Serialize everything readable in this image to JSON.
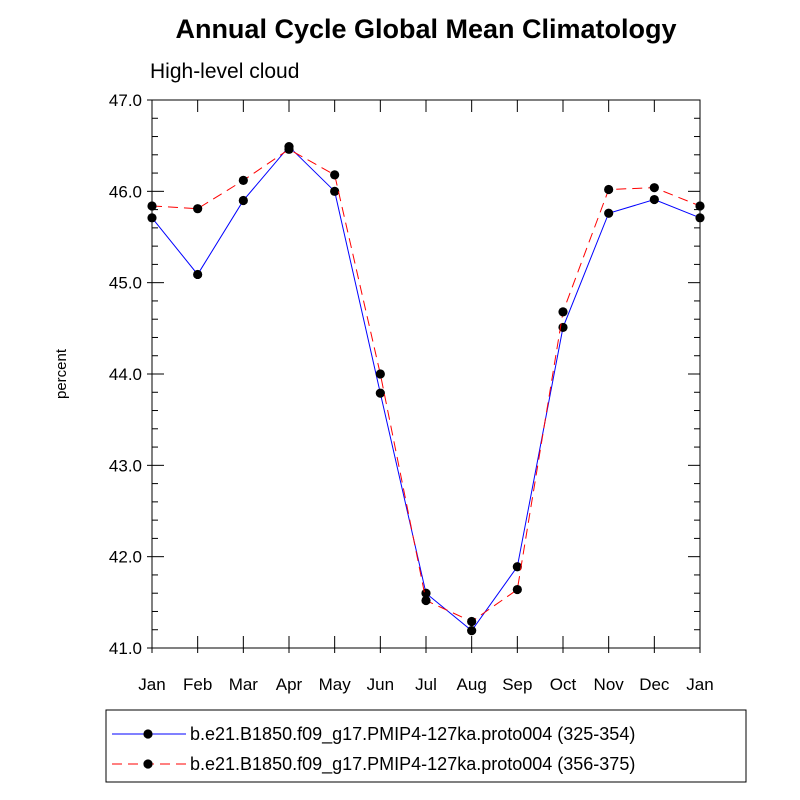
{
  "chart_data": {
    "type": "line",
    "title": "Annual Cycle Global Mean Climatology",
    "subtitle": "High-level cloud",
    "xlabel": "",
    "ylabel": "percent",
    "ylim": [
      41.0,
      47.0
    ],
    "y_ticks": [
      "41.0",
      "42.0",
      "43.0",
      "44.0",
      "45.0",
      "46.0",
      "47.0"
    ],
    "categories": [
      "Jan",
      "Feb",
      "Mar",
      "Apr",
      "May",
      "Jun",
      "Jul",
      "Aug",
      "Sep",
      "Oct",
      "Nov",
      "Dec",
      "Jan"
    ],
    "series": [
      {
        "name": "b.e21.B1850.f09_g17.PMIP4-127ka.proto004 (325-354)",
        "color": "#0000ff",
        "dash": "solid",
        "values": [
          45.71,
          45.09,
          45.9,
          46.49,
          46.0,
          43.79,
          41.6,
          41.19,
          41.89,
          44.51,
          45.76,
          45.91,
          45.71
        ]
      },
      {
        "name": "b.e21.B1850.f09_g17.PMIP4-127ka.proto004 (356-375)",
        "color": "#ff0000",
        "dash": "dashed",
        "values": [
          45.84,
          45.81,
          46.12,
          46.46,
          46.18,
          44.0,
          41.52,
          41.29,
          41.64,
          44.68,
          46.02,
          46.04,
          45.84
        ]
      }
    ],
    "legend_position": "bottom",
    "grid": false
  }
}
